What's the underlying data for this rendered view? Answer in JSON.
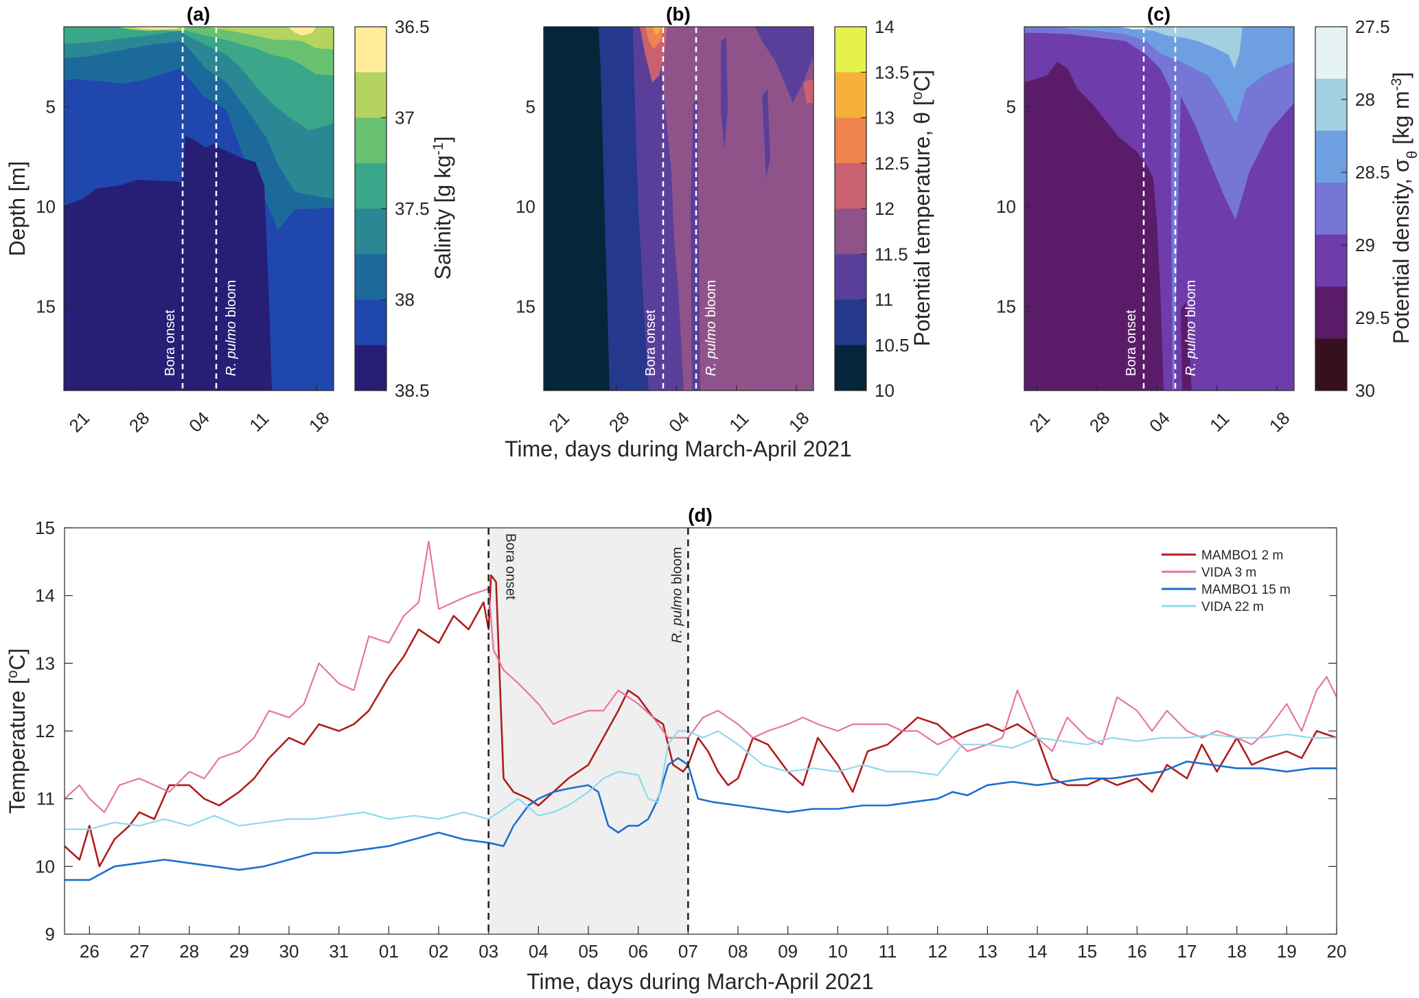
{
  "figure": {
    "shared_xlabel_top": "Time, days during March-April 2021"
  },
  "chart_data": [
    {
      "id": "a",
      "type": "heatmap",
      "title": "(a)",
      "ylabel": "Depth [m]",
      "colorbar_label": "Salinity [g kg-1]",
      "colorbar_label_parts": [
        "Salinity [g kg",
        "-1",
        "]"
      ],
      "colorbar_ticks": [
        "36.5",
        "37",
        "37.5",
        "38",
        "38.5"
      ],
      "colorbar_levels": [
        36.5,
        36.75,
        37.0,
        37.25,
        37.5,
        37.75,
        38.0,
        38.25,
        38.5
      ],
      "colors": [
        "#ffeb99",
        "#b5d35f",
        "#67c171",
        "#3aa68a",
        "#2b8793",
        "#1c6a9c",
        "#1f47ad",
        "#261f75"
      ],
      "yticks": [
        "5",
        "10",
        "15"
      ],
      "ylim": [
        1,
        19.2
      ],
      "xticks": [
        "21",
        "28",
        "04",
        "11",
        "18"
      ],
      "xlim": [
        19.5,
        51
      ],
      "events": [
        {
          "day": 33,
          "label": "Bora onset"
        },
        {
          "day": 37,
          "label": "R. pulmo bloom"
        }
      ]
    },
    {
      "id": "b",
      "type": "heatmap",
      "title": "(b)",
      "colorbar_label": "Potential temperature, θ [oC]",
      "colorbar_label_parts": [
        "Potential temperature, θ [",
        "o",
        "C]"
      ],
      "colorbar_ticks": [
        "14",
        "13.5",
        "13",
        "12.5",
        "12",
        "11.5",
        "11",
        "10.5",
        "10"
      ],
      "colors": [
        "#e6f24c",
        "#f6b13d",
        "#ef844e",
        "#c96171",
        "#8f538a",
        "#5a3f9a",
        "#24388c",
        "#04263a"
      ],
      "yticks": [
        "5",
        "10",
        "15"
      ],
      "xticks": [
        "21",
        "28",
        "04",
        "11",
        "18"
      ],
      "events": [
        {
          "day": 33,
          "label": "Bora onset"
        },
        {
          "day": 37,
          "label": "R. pulmo bloom"
        }
      ]
    },
    {
      "id": "c",
      "type": "heatmap",
      "title": "(c)",
      "colorbar_label": "Potential density, σθ [kg m-3]",
      "colorbar_label_parts": [
        "Potential density, σ",
        "θ",
        " [kg m",
        "-3",
        "]"
      ],
      "colorbar_ticks": [
        "27.5",
        "28",
        "28.5",
        "29",
        "29.5",
        "30"
      ],
      "colors": [
        "#e7f3f2",
        "#a3cfe0",
        "#6ea0e1",
        "#7576d6",
        "#6e3cab",
        "#5a1c68",
        "#371020"
      ],
      "yticks": [
        "5",
        "10",
        "15"
      ],
      "xticks": [
        "21",
        "28",
        "04",
        "11",
        "18"
      ],
      "events": [
        {
          "day": 33,
          "label": "Bora onset"
        },
        {
          "day": 37,
          "label": "R. pulmo bloom"
        }
      ]
    },
    {
      "id": "d",
      "type": "line",
      "title": "(d)",
      "xlabel": "Time, days during March-April 2021",
      "ylabel": "Temperature [oC]",
      "ylabel_parts": [
        "Temperature [",
        "o",
        "C]"
      ],
      "ylim": [
        9,
        15
      ],
      "xlim": [
        25.5,
        51
      ],
      "yticks": [
        "9",
        "10",
        "11",
        "12",
        "13",
        "14",
        "15"
      ],
      "xticks": [
        "26",
        "27",
        "28",
        "29",
        "30",
        "31",
        "01",
        "02",
        "03",
        "04",
        "05",
        "06",
        "07",
        "08",
        "09",
        "10",
        "11",
        "12",
        "13",
        "14",
        "15",
        "16",
        "17",
        "18",
        "19",
        "20"
      ],
      "shaded": [
        34,
        38
      ],
      "events": [
        {
          "x": 34,
          "label": "Bora onset"
        },
        {
          "x": 38,
          "label": "R. pulmo bloom"
        }
      ],
      "series": [
        {
          "name": "MAMBO1 2 m",
          "color": "#b01c1c",
          "stroke": 2.6,
          "x": [
            25.5,
            25.8,
            26.0,
            26.2,
            26.5,
            26.8,
            27.0,
            27.3,
            27.6,
            28.0,
            28.3,
            28.6,
            29.0,
            29.3,
            29.6,
            30.0,
            30.3,
            30.6,
            31.0,
            31.3,
            31.6,
            32.0,
            32.3,
            32.6,
            33.0,
            33.3,
            33.6,
            33.9,
            34.0,
            34.05,
            34.15,
            34.3,
            34.5,
            34.8,
            35.0,
            35.3,
            35.6,
            36.0,
            36.3,
            36.6,
            36.8,
            37.0,
            37.3,
            37.5,
            37.7,
            37.9,
            38.0,
            38.2,
            38.4,
            38.6,
            38.8,
            39.0,
            39.3,
            39.6,
            40.0,
            40.3,
            40.6,
            41.0,
            41.3,
            41.6,
            42.0,
            42.3,
            42.6,
            43.0,
            43.3,
            43.6,
            44.0,
            44.3,
            44.6,
            45.0,
            45.3,
            45.6,
            46.0,
            46.3,
            46.6,
            47.0,
            47.3,
            47.6,
            48.0,
            48.3,
            48.6,
            49.0,
            49.3,
            49.6,
            50.0,
            50.3,
            50.6,
            51.0
          ],
          "values": [
            10.3,
            10.1,
            10.6,
            10.0,
            10.4,
            10.6,
            10.8,
            10.7,
            11.2,
            11.2,
            11.0,
            10.9,
            11.1,
            11.3,
            11.6,
            11.9,
            11.8,
            12.1,
            12.0,
            12.1,
            12.3,
            12.8,
            13.1,
            13.5,
            13.3,
            13.7,
            13.5,
            13.9,
            13.5,
            14.3,
            14.2,
            11.3,
            11.1,
            11.0,
            10.9,
            11.1,
            11.3,
            11.5,
            11.9,
            12.3,
            12.6,
            12.5,
            12.2,
            12.1,
            11.5,
            11.4,
            11.5,
            11.9,
            11.7,
            11.4,
            11.2,
            11.3,
            11.9,
            11.8,
            11.4,
            11.2,
            11.9,
            11.5,
            11.1,
            11.7,
            11.8,
            12.0,
            12.2,
            12.1,
            11.9,
            12.0,
            12.1,
            12.0,
            12.1,
            11.9,
            11.3,
            11.2,
            11.2,
            11.3,
            11.2,
            11.3,
            11.1,
            11.5,
            11.3,
            11.8,
            11.4,
            11.9,
            11.5,
            11.6,
            11.7,
            11.6,
            12.0,
            11.9
          ]
        },
        {
          "name": "VIDA 3 m",
          "color": "#e8739f",
          "stroke": 2.2,
          "x": [
            25.5,
            25.8,
            26.0,
            26.3,
            26.6,
            27.0,
            27.3,
            27.6,
            28.0,
            28.3,
            28.6,
            29.0,
            29.3,
            29.6,
            30.0,
            30.3,
            30.6,
            31.0,
            31.3,
            31.6,
            32.0,
            32.3,
            32.6,
            32.8,
            33.0,
            33.3,
            33.6,
            34.0,
            34.1,
            34.3,
            34.6,
            35.0,
            35.3,
            35.6,
            36.0,
            36.3,
            36.6,
            37.0,
            37.3,
            37.6,
            38.0,
            38.3,
            38.6,
            39.0,
            39.3,
            39.6,
            40.0,
            40.3,
            40.6,
            41.0,
            41.3,
            41.6,
            42.0,
            42.3,
            42.6,
            43.0,
            43.3,
            43.6,
            44.0,
            44.3,
            44.6,
            45.0,
            45.3,
            45.6,
            46.0,
            46.3,
            46.6,
            47.0,
            47.3,
            47.6,
            48.0,
            48.3,
            48.6,
            49.0,
            49.3,
            49.6,
            50.0,
            50.3,
            50.6,
            50.8,
            51.0
          ],
          "values": [
            11.0,
            11.2,
            11.0,
            10.8,
            11.2,
            11.3,
            11.2,
            11.1,
            11.4,
            11.3,
            11.6,
            11.7,
            11.9,
            12.3,
            12.2,
            12.4,
            13.0,
            12.7,
            12.6,
            13.4,
            13.3,
            13.7,
            13.9,
            14.8,
            13.8,
            13.9,
            14.0,
            14.1,
            13.2,
            12.9,
            12.7,
            12.4,
            12.1,
            12.2,
            12.3,
            12.3,
            12.6,
            12.4,
            12.2,
            11.9,
            11.9,
            12.2,
            12.3,
            12.1,
            11.9,
            12.0,
            12.1,
            12.2,
            12.1,
            12.0,
            12.1,
            12.1,
            12.1,
            12.0,
            12.0,
            11.8,
            11.9,
            11.7,
            11.8,
            11.9,
            12.6,
            11.9,
            11.7,
            12.2,
            11.9,
            11.8,
            12.5,
            12.3,
            12.0,
            12.3,
            12.0,
            11.9,
            12.0,
            11.9,
            11.8,
            12.0,
            12.4,
            12.0,
            12.6,
            12.8,
            12.5
          ]
        },
        {
          "name": "MAMBO1 15 m",
          "color": "#1a6fcf",
          "stroke": 2.6,
          "x": [
            25.5,
            26.0,
            26.5,
            27.0,
            27.5,
            28.0,
            28.5,
            29.0,
            29.5,
            30.0,
            30.5,
            31.0,
            31.5,
            32.0,
            32.5,
            33.0,
            33.5,
            34.0,
            34.3,
            34.5,
            34.8,
            35.0,
            35.3,
            35.6,
            36.0,
            36.2,
            36.4,
            36.6,
            36.8,
            37.0,
            37.2,
            37.4,
            37.6,
            37.8,
            38.0,
            38.2,
            38.5,
            39.0,
            39.5,
            40.0,
            40.5,
            41.0,
            41.5,
            42.0,
            42.5,
            43.0,
            43.3,
            43.6,
            44.0,
            44.5,
            45.0,
            45.5,
            46.0,
            46.5,
            47.0,
            47.5,
            48.0,
            48.5,
            49.0,
            49.5,
            50.0,
            50.5,
            51.0
          ],
          "values": [
            9.8,
            9.8,
            10.0,
            10.05,
            10.1,
            10.05,
            10.0,
            9.95,
            10.0,
            10.1,
            10.2,
            10.2,
            10.25,
            10.3,
            10.4,
            10.5,
            10.4,
            10.35,
            10.3,
            10.6,
            10.9,
            11.0,
            11.1,
            11.15,
            11.2,
            11.1,
            10.6,
            10.5,
            10.6,
            10.6,
            10.7,
            11.0,
            11.5,
            11.6,
            11.5,
            11.0,
            10.95,
            10.9,
            10.85,
            10.8,
            10.85,
            10.85,
            10.9,
            10.9,
            10.95,
            11.0,
            11.1,
            11.05,
            11.2,
            11.25,
            11.2,
            11.25,
            11.3,
            11.3,
            11.35,
            11.4,
            11.55,
            11.5,
            11.45,
            11.45,
            11.4,
            11.45,
            11.45
          ]
        },
        {
          "name": "VIDA 22 m",
          "color": "#8fd9ef",
          "stroke": 2.2,
          "x": [
            25.5,
            26.0,
            26.5,
            27.0,
            27.5,
            28.0,
            28.5,
            29.0,
            29.5,
            30.0,
            30.5,
            31.0,
            31.5,
            32.0,
            32.5,
            33.0,
            33.5,
            34.0,
            34.3,
            34.6,
            35.0,
            35.3,
            35.6,
            36.0,
            36.3,
            36.6,
            37.0,
            37.2,
            37.4,
            37.6,
            37.8,
            38.0,
            38.3,
            38.6,
            39.0,
            39.5,
            40.0,
            40.5,
            41.0,
            41.5,
            42.0,
            42.5,
            43.0,
            43.5,
            44.0,
            44.5,
            45.0,
            45.5,
            46.0,
            46.5,
            47.0,
            47.5,
            48.0,
            48.5,
            49.0,
            49.5,
            50.0,
            50.5,
            51.0
          ],
          "values": [
            10.55,
            10.55,
            10.65,
            10.6,
            10.7,
            10.6,
            10.75,
            10.6,
            10.65,
            10.7,
            10.7,
            10.75,
            10.8,
            10.7,
            10.75,
            10.7,
            10.8,
            10.7,
            10.85,
            11.0,
            10.75,
            10.8,
            10.9,
            11.1,
            11.3,
            11.4,
            11.35,
            11.0,
            10.95,
            11.8,
            12.0,
            12.0,
            11.9,
            12.0,
            11.8,
            11.5,
            11.4,
            11.45,
            11.4,
            11.5,
            11.4,
            11.4,
            11.35,
            11.8,
            11.8,
            11.75,
            11.9,
            11.85,
            11.8,
            11.9,
            11.85,
            11.9,
            11.9,
            11.95,
            11.9,
            11.9,
            11.95,
            11.9,
            11.9
          ]
        }
      ]
    }
  ]
}
